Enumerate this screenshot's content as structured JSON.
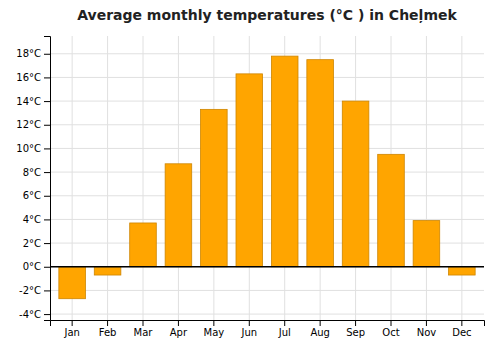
{
  "chart_data": {
    "type": "bar",
    "title": "Average monthly temperatures (°C ) in Cheļmek",
    "categories": [
      "Jan",
      "Feb",
      "Mar",
      "Apr",
      "May",
      "Jun",
      "Jul",
      "Aug",
      "Sep",
      "Oct",
      "Nov",
      "Dec"
    ],
    "values": [
      -2.7,
      -0.7,
      3.7,
      8.7,
      13.3,
      16.3,
      17.8,
      17.5,
      14.0,
      9.5,
      3.9,
      -0.7
    ],
    "color": "#FFA500",
    "ylim": [
      -4.5,
      19.5
    ],
    "yticks": [
      {
        "value": -4,
        "label": "-4°C"
      },
      {
        "value": -2,
        "label": "-2°C"
      },
      {
        "value": 0,
        "label": "0°C"
      },
      {
        "value": 2,
        "label": "2°C"
      },
      {
        "value": 4,
        "label": "4°C"
      },
      {
        "value": 6,
        "label": "6°C"
      },
      {
        "value": 8,
        "label": "8°C"
      },
      {
        "value": 10,
        "label": "10°C"
      },
      {
        "value": 12,
        "label": "12°C"
      },
      {
        "value": 14,
        "label": "14°C"
      },
      {
        "value": 16,
        "label": "16°C"
      },
      {
        "value": 18,
        "label": "18°C"
      }
    ],
    "grid": true
  }
}
